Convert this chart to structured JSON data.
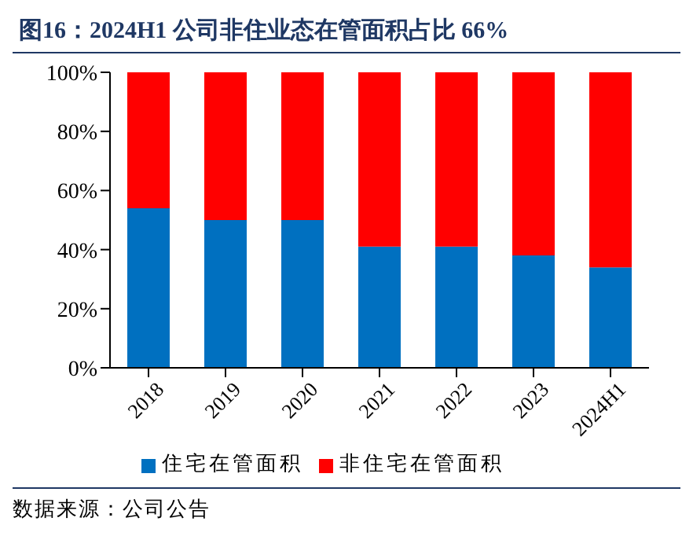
{
  "chart_data": {
    "type": "bar",
    "title": "图16：2024H1 公司非住业态在管面积占比 66%",
    "categories": [
      "2018",
      "2019",
      "2020",
      "2021",
      "2022",
      "2023",
      "2024H1"
    ],
    "series": [
      {
        "name": "住宅在管面积",
        "color": "#0070c0",
        "values": [
          54,
          50,
          50,
          41,
          41,
          38,
          34
        ]
      },
      {
        "name": "非住宅在管面积",
        "color": "#ff0000",
        "values": [
          46,
          50,
          50,
          59,
          59,
          62,
          66
        ]
      }
    ],
    "stacked": true,
    "ylim": [
      0,
      100
    ],
    "yticks": [
      {
        "value": 0,
        "label": "0%"
      },
      {
        "value": 20,
        "label": "20%"
      },
      {
        "value": 40,
        "label": "40%"
      },
      {
        "value": 60,
        "label": "60%"
      },
      {
        "value": 80,
        "label": "80%"
      },
      {
        "value": 100,
        "label": "100%"
      }
    ],
    "grid": false,
    "legend": "bottom",
    "annotations": [
      "数据来源：公司公告"
    ]
  }
}
